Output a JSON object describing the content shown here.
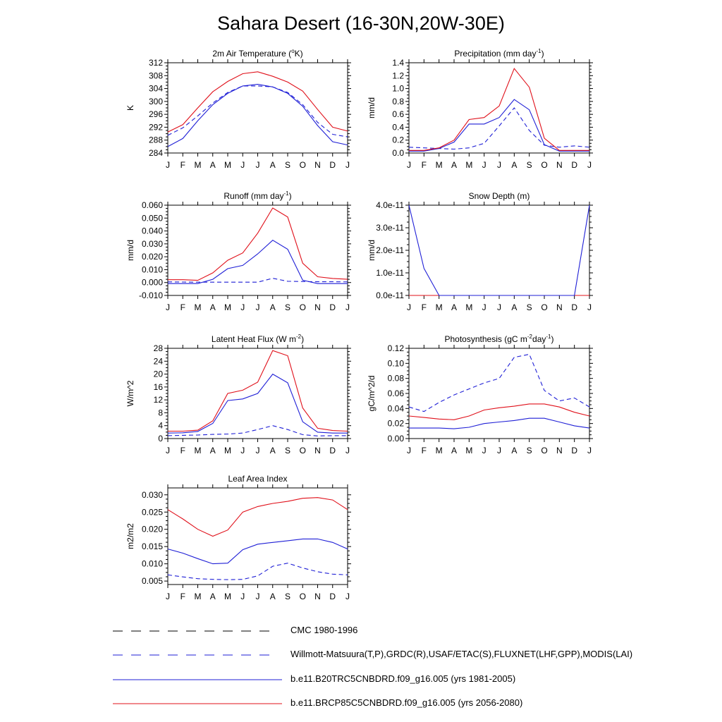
{
  "title": "Sahara Desert (16-30N,20W-30E)",
  "months": [
    "J",
    "F",
    "M",
    "A",
    "M",
    "J",
    "J",
    "A",
    "S",
    "O",
    "N",
    "D",
    "J"
  ],
  "colors": {
    "cmc": "#000000",
    "obs": "#1f1fd6",
    "b20": "#1f1fd6",
    "rcp85": "#e0101a"
  },
  "legend": [
    {
      "id": "cmc",
      "label": "CMC 1980-1996",
      "color": "#000000",
      "style": "dashed"
    },
    {
      "id": "obs",
      "label": "Willmott-Matsuura(T,P),GRDC(R),USAF/ETAC(S),FLUXNET(LHF,GPP),MODIS(LAI)",
      "color": "#1f1fd6",
      "style": "dashed"
    },
    {
      "id": "b20",
      "label": "b.e11.B20TRC5CNBDRD.f09_g16.005 (yrs 1981-2005)",
      "color": "#1f1fd6",
      "style": "solid"
    },
    {
      "id": "rcp85",
      "label": "b.e11.BRCP85C5CNBDRD.f09_g16.005 (yrs 2056-2080)",
      "color": "#e0101a",
      "style": "solid"
    }
  ],
  "chart_data": [
    {
      "id": "temp",
      "type": "line",
      "title": "2m Air Temperature (°K)",
      "ylabel": "K",
      "ylim": [
        284,
        312
      ],
      "yticks": [
        284,
        288,
        292,
        296,
        300,
        304,
        308,
        312
      ],
      "ytick_labels": [
        "284",
        "288",
        "292",
        "296",
        "300",
        "304",
        "308",
        "312"
      ],
      "series": [
        {
          "name": "obs",
          "style": "dashed",
          "color": "#1f1fd6",
          "values": [
            289.5,
            291.8,
            295.5,
            299.5,
            302.8,
            304.8,
            304.8,
            304.5,
            302.8,
            299.0,
            293.5,
            289.8,
            289.0
          ]
        },
        {
          "name": "b20",
          "style": "solid",
          "color": "#1f1fd6",
          "values": [
            286.0,
            288.5,
            294.0,
            299.0,
            302.5,
            304.8,
            305.3,
            304.5,
            302.5,
            298.5,
            292.5,
            287.5,
            286.5
          ]
        },
        {
          "name": "rcp85",
          "style": "solid",
          "color": "#e0101a",
          "values": [
            290.5,
            292.8,
            298.0,
            303.0,
            306.2,
            308.6,
            309.2,
            307.8,
            306.0,
            303.2,
            297.5,
            292.0,
            290.8
          ]
        }
      ]
    },
    {
      "id": "precip",
      "type": "line",
      "title": "Precipitation (mm day-1)",
      "ylabel": "mm/d",
      "ylim": [
        0,
        1.4
      ],
      "yticks": [
        0,
        0.2,
        0.4,
        0.6,
        0.8,
        1.0,
        1.2,
        1.4
      ],
      "ytick_labels": [
        "0.0",
        "0.2",
        "0.4",
        "0.6",
        "0.8",
        "1.0",
        "1.2",
        "1.4"
      ],
      "series": [
        {
          "name": "obs",
          "style": "dashed",
          "color": "#1f1fd6",
          "values": [
            0.09,
            0.08,
            0.07,
            0.06,
            0.08,
            0.15,
            0.42,
            0.7,
            0.35,
            0.12,
            0.09,
            0.11,
            0.09
          ]
        },
        {
          "name": "b20",
          "style": "solid",
          "color": "#1f1fd6",
          "values": [
            0.03,
            0.03,
            0.07,
            0.17,
            0.45,
            0.45,
            0.55,
            0.83,
            0.67,
            0.13,
            0.03,
            0.03,
            0.03
          ]
        },
        {
          "name": "rcp85",
          "style": "solid",
          "color": "#e0101a",
          "values": [
            0.04,
            0.04,
            0.08,
            0.2,
            0.52,
            0.55,
            0.73,
            1.31,
            1.02,
            0.23,
            0.04,
            0.04,
            0.04
          ]
        }
      ]
    },
    {
      "id": "runoff",
      "type": "line",
      "title": "Runoff (mm day-1)",
      "ylabel": "mm/d",
      "ylim": [
        -0.01,
        0.06
      ],
      "yticks": [
        -0.01,
        0,
        0.01,
        0.02,
        0.03,
        0.04,
        0.05,
        0.06
      ],
      "ytick_labels": [
        "-0.010",
        "0.000",
        "0.010",
        "0.020",
        "0.030",
        "0.040",
        "0.050",
        "0.060"
      ],
      "series": [
        {
          "name": "obs",
          "style": "dashed",
          "color": "#1f1fd6",
          "values": [
            0.0005,
            0.0004,
            0.0003,
            0.0003,
            0.0003,
            0.0003,
            0.0003,
            0.0033,
            0.001,
            0.0008,
            0.0006,
            0.0006,
            0.0005
          ]
        },
        {
          "name": "b20",
          "style": "solid",
          "color": "#1f1fd6",
          "values": [
            -0.0008,
            -0.0008,
            -0.0008,
            0.0025,
            0.0108,
            0.0133,
            0.0222,
            0.0328,
            0.0258,
            0.0018,
            -0.0008,
            -0.0008,
            -0.0008
          ]
        },
        {
          "name": "rcp85",
          "style": "solid",
          "color": "#e0101a",
          "values": [
            0.0022,
            0.0022,
            0.0017,
            0.0075,
            0.0173,
            0.023,
            0.0383,
            0.0578,
            0.0508,
            0.015,
            0.0045,
            0.0032,
            0.0025
          ]
        }
      ]
    },
    {
      "id": "snow",
      "type": "line",
      "title": "Snow Depth (m)",
      "ylabel": "mm/d",
      "ylim": [
        0,
        4e-11
      ],
      "yticks": [
        0,
        1e-11,
        2e-11,
        3e-11,
        4e-11
      ],
      "ytick_labels": [
        "0.0e-11",
        "1.0e-11",
        "2.0e-11",
        "3.0e-11",
        "4.0e-11"
      ],
      "series": [
        {
          "name": "obs",
          "style": "dashed",
          "color": "#1f1fd6",
          "values": [
            0,
            0,
            0,
            0,
            0,
            0,
            0,
            0,
            0,
            0,
            0,
            0,
            0
          ]
        },
        {
          "name": "rcp85",
          "style": "solid",
          "color": "#e0101a",
          "values": [
            0,
            0,
            0,
            0,
            0,
            0,
            0,
            0,
            0,
            0,
            0,
            0,
            0
          ]
        },
        {
          "name": "b20",
          "style": "solid",
          "color": "#1f1fd6",
          "values": [
            4e-11,
            1.2e-11,
            0,
            0,
            0,
            0,
            0,
            0,
            0,
            0,
            0,
            0,
            4e-11
          ]
        }
      ]
    },
    {
      "id": "lhf",
      "type": "line",
      "title": "Latent Heat Flux (W m-2)",
      "ylabel": "W/m^2",
      "ylim": [
        0,
        28
      ],
      "yticks": [
        0,
        4,
        8,
        12,
        16,
        20,
        24,
        28
      ],
      "ytick_labels": [
        "0",
        "4",
        "8",
        "12",
        "16",
        "20",
        "24",
        "28"
      ],
      "series": [
        {
          "name": "obs",
          "style": "dashed",
          "color": "#1f1fd6",
          "values": [
            0.9,
            1.0,
            1.1,
            1.3,
            1.4,
            1.7,
            2.8,
            4.0,
            2.8,
            1.2,
            0.8,
            0.9,
            0.9
          ]
        },
        {
          "name": "b20",
          "style": "solid",
          "color": "#1f1fd6",
          "values": [
            1.7,
            1.8,
            2.2,
            4.7,
            11.8,
            12.3,
            14.0,
            20.0,
            17.3,
            5.2,
            2.0,
            1.7,
            1.7
          ]
        },
        {
          "name": "rcp85",
          "style": "solid",
          "color": "#e0101a",
          "values": [
            2.3,
            2.3,
            2.6,
            5.5,
            14.0,
            15.0,
            17.5,
            27.3,
            25.7,
            9.5,
            3.2,
            2.5,
            2.3
          ]
        }
      ]
    },
    {
      "id": "gpp",
      "type": "line",
      "title": "Photosynthesis (gC m-2day-1)",
      "ylabel": "gC/m^2/d",
      "ylim": [
        0,
        0.12
      ],
      "yticks": [
        0,
        0.02,
        0.04,
        0.06,
        0.08,
        0.1,
        0.12
      ],
      "ytick_labels": [
        "0.00",
        "0.02",
        "0.04",
        "0.06",
        "0.08",
        "0.10",
        "0.12"
      ],
      "series": [
        {
          "name": "obs",
          "style": "dashed",
          "color": "#1f1fd6",
          "values": [
            0.042,
            0.036,
            0.048,
            0.058,
            0.066,
            0.074,
            0.08,
            0.108,
            0.112,
            0.064,
            0.05,
            0.054,
            0.042
          ]
        },
        {
          "name": "b20",
          "style": "solid",
          "color": "#1f1fd6",
          "values": [
            0.014,
            0.014,
            0.014,
            0.013,
            0.015,
            0.02,
            0.022,
            0.024,
            0.027,
            0.027,
            0.022,
            0.017,
            0.014
          ]
        },
        {
          "name": "rcp85",
          "style": "solid",
          "color": "#e0101a",
          "values": [
            0.03,
            0.028,
            0.026,
            0.025,
            0.03,
            0.038,
            0.041,
            0.043,
            0.046,
            0.046,
            0.042,
            0.035,
            0.03
          ]
        }
      ]
    },
    {
      "id": "lai",
      "type": "line",
      "title": "Leaf Area Index",
      "ylabel": "m2/m2",
      "ylim": [
        0.004,
        0.032
      ],
      "yticks": [
        0.005,
        0.01,
        0.015,
        0.02,
        0.025,
        0.03
      ],
      "ytick_labels": [
        "0.005",
        "0.010",
        "0.015",
        "0.020",
        "0.025",
        "0.030"
      ],
      "series": [
        {
          "name": "obs",
          "style": "dashed",
          "color": "#1f1fd6",
          "values": [
            0.0068,
            0.0062,
            0.0057,
            0.0055,
            0.0054,
            0.0055,
            0.0065,
            0.0093,
            0.0102,
            0.0088,
            0.0077,
            0.007,
            0.0068
          ]
        },
        {
          "name": "b20",
          "style": "solid",
          "color": "#1f1fd6",
          "values": [
            0.0143,
            0.0131,
            0.0115,
            0.01,
            0.0102,
            0.0141,
            0.0157,
            0.0162,
            0.0167,
            0.0172,
            0.0172,
            0.0162,
            0.0143
          ]
        },
        {
          "name": "rcp85",
          "style": "solid",
          "color": "#e0101a",
          "values": [
            0.0257,
            0.023,
            0.02,
            0.018,
            0.0198,
            0.025,
            0.0266,
            0.0275,
            0.0281,
            0.029,
            0.0292,
            0.0285,
            0.0257
          ]
        }
      ]
    }
  ]
}
